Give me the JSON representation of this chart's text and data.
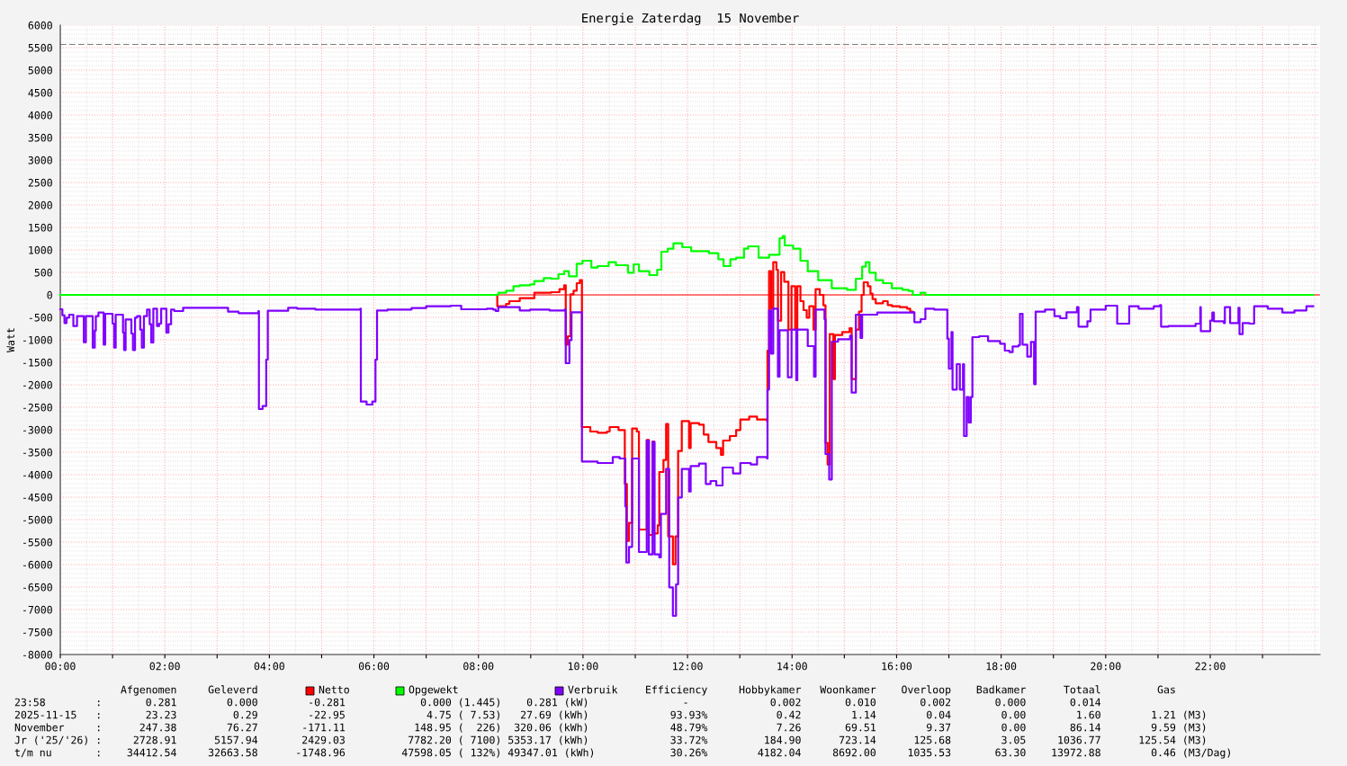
{
  "chart_data": {
    "type": "step",
    "title": "Energie Zaterdag  15 November",
    "ylabel": "Watt",
    "xlim": [
      0,
      24.1
    ],
    "ylim": [
      -8000,
      6000
    ],
    "xticks": [
      {
        "value": 0,
        "label": "00:00"
      },
      {
        "value": 1,
        "label": null
      },
      {
        "value": 2,
        "label": "02:00"
      },
      {
        "value": 3,
        "label": null
      },
      {
        "value": 4,
        "label": "04:00"
      },
      {
        "value": 5,
        "label": null
      },
      {
        "value": 6,
        "label": "06:00"
      },
      {
        "value": 7,
        "label": null
      },
      {
        "value": 8,
        "label": "08:00"
      },
      {
        "value": 9,
        "label": null
      },
      {
        "value": 10,
        "label": "10:00"
      },
      {
        "value": 11,
        "label": null
      },
      {
        "value": 12,
        "label": "12:00"
      },
      {
        "value": 13,
        "label": null
      },
      {
        "value": 14,
        "label": "14:00"
      },
      {
        "value": 15,
        "label": null
      },
      {
        "value": 16,
        "label": "16:00"
      },
      {
        "value": 17,
        "label": null
      },
      {
        "value": 18,
        "label": "18:00"
      },
      {
        "value": 19,
        "label": null
      },
      {
        "value": 20,
        "label": "20:00"
      },
      {
        "value": 21,
        "label": null
      },
      {
        "value": 22,
        "label": "22:00"
      },
      {
        "value": 23,
        "label": null
      }
    ],
    "yticks": [
      -8000,
      -7500,
      -7000,
      -6500,
      -6000,
      -5500,
      -5000,
      -4500,
      -4000,
      -3500,
      -3000,
      -2500,
      -2000,
      -1500,
      -1000,
      -500,
      0,
      500,
      1000,
      1500,
      2000,
      2500,
      3000,
      3500,
      4000,
      4500,
      5000,
      5500,
      6000
    ],
    "grid": true,
    "legend": "bottom",
    "ref_lines": [
      {
        "axis": "y",
        "value": 0,
        "color": "#ff0000",
        "line_style": "solid"
      },
      {
        "axis": "y",
        "value": 5570,
        "color": "#808080",
        "line_style": "dashed"
      }
    ],
    "series": [
      {
        "name": "Netto",
        "color": "#ff0000",
        "x": [
          8.33,
          8.36,
          8.53,
          8.59,
          8.79,
          9.07,
          9.39,
          9.55,
          9.64,
          9.67,
          9.71,
          9.76,
          9.82,
          9.88,
          9.94,
          9.98,
          10.14,
          10.28,
          10.46,
          10.51,
          10.68,
          10.8,
          10.84,
          10.88,
          10.94,
          11.03,
          11.07,
          11.22,
          11.26,
          11.33,
          11.36,
          11.43,
          11.46,
          11.54,
          11.59,
          11.63,
          11.72,
          11.77,
          11.82,
          11.89,
          12.03,
          12.06,
          12.22,
          12.31,
          12.4,
          12.55,
          12.64,
          12.68,
          12.81,
          12.93,
          13.01,
          13.18,
          13.33,
          13.52,
          13.53,
          13.56,
          13.6,
          13.64,
          13.7,
          13.73,
          13.79,
          13.85,
          13.93,
          13.99,
          14.06,
          14.1,
          14.16,
          14.22,
          14.28,
          14.33,
          14.41,
          14.45,
          14.53,
          14.6,
          14.64,
          14.68,
          14.72,
          14.79,
          14.82,
          14.96,
          15.1,
          15.14,
          15.22,
          15.28,
          15.33,
          15.37,
          15.45,
          15.5,
          15.54,
          15.6,
          15.74,
          15.83,
          15.91,
          16.06,
          16.2,
          16.26,
          16.31
        ],
        "values": [
          0,
          -253,
          -200,
          -140,
          -73,
          47,
          60,
          127,
          213,
          -1107,
          -920,
          13,
          93,
          260,
          327,
          -2940,
          -3040,
          -3067,
          -3040,
          -2940,
          -3007,
          -4207,
          -5473,
          -5073,
          -2973,
          -3040,
          -5220,
          -3227,
          -5340,
          -3260,
          -5307,
          -5127,
          -3940,
          -3673,
          -2873,
          -5373,
          -5993,
          -5373,
          -3473,
          -2807,
          -3407,
          -2853,
          -2887,
          -3107,
          -3273,
          -3407,
          -3560,
          -3240,
          -3140,
          -3007,
          -2773,
          -2707,
          -2773,
          -2807,
          -1240,
          527,
          -307,
          727,
          560,
          -573,
          507,
          293,
          -773,
          193,
          -773,
          193,
          -140,
          -340,
          -507,
          -253,
          -773,
          127,
          0,
          -233,
          -3293,
          -3773,
          -873,
          -1873,
          -893,
          -827,
          -740,
          -1873,
          -773,
          -373,
          0,
          280,
          193,
          27,
          -93,
          -187,
          -140,
          -227,
          -253,
          -273,
          -307,
          -373,
          -387
        ]
      },
      {
        "name": "Opgewekt",
        "color": "#00ff00",
        "x": [
          0,
          8.33,
          8.38,
          8.53,
          8.67,
          8.79,
          8.99,
          9.07,
          9.25,
          9.39,
          9.53,
          9.64,
          9.73,
          9.88,
          9.99,
          10.16,
          10.28,
          10.49,
          10.63,
          10.86,
          10.97,
          11.07,
          11.27,
          11.42,
          11.5,
          11.62,
          11.73,
          11.9,
          12.07,
          12.41,
          12.59,
          12.69,
          12.82,
          12.93,
          13.08,
          13.16,
          13.36,
          13.56,
          13.76,
          13.82,
          13.86,
          14.02,
          14.16,
          14.3,
          14.5,
          14.76,
          15.05,
          15.22,
          15.34,
          15.41,
          15.48,
          15.6,
          15.74,
          15.91,
          16.11,
          16.23,
          16.31,
          16.46,
          16.55,
          23.97
        ],
        "values": [
          0,
          0,
          47,
          93,
          193,
          213,
          233,
          307,
          373,
          360,
          460,
          527,
          413,
          693,
          760,
          607,
          640,
          727,
          660,
          493,
          680,
          527,
          440,
          560,
          960,
          1027,
          1147,
          1060,
          973,
          927,
          793,
          640,
          793,
          827,
          1027,
          1080,
          827,
          893,
          1260,
          1307,
          1100,
          1027,
          760,
          527,
          327,
          147,
          113,
          360,
          627,
          727,
          493,
          327,
          260,
          147,
          113,
          87,
          0,
          47,
          0,
          0
        ]
      },
      {
        "name": "Verbruik",
        "color": "#7f00ff",
        "x": [
          0,
          0.04,
          0.08,
          0.12,
          0.17,
          0.25,
          0.32,
          0.45,
          0.49,
          0.62,
          0.66,
          0.68,
          0.73,
          0.83,
          0.86,
          1.0,
          1.03,
          1.06,
          1.2,
          1.22,
          1.25,
          1.36,
          1.39,
          1.43,
          1.47,
          1.53,
          1.56,
          1.6,
          1.66,
          1.71,
          1.74,
          1.78,
          1.85,
          1.89,
          1.93,
          2.03,
          2.07,
          2.12,
          2.18,
          2.35,
          3.21,
          3.41,
          3.79,
          3.8,
          3.87,
          3.94,
          3.97,
          4.36,
          4.53,
          4.88,
          5.74,
          5.75,
          5.86,
          5.97,
          6.03,
          6.06,
          6.26,
          6.72,
          7.0,
          7.47,
          7.67,
          8.16,
          8.28,
          8.33,
          8.38,
          8.79,
          8.99,
          9.36,
          9.65,
          9.67,
          9.74,
          9.78,
          9.98,
          10.28,
          10.57,
          10.7,
          10.81,
          10.83,
          10.88,
          10.94,
          11.07,
          11.22,
          11.26,
          11.33,
          11.37,
          11.46,
          11.49,
          11.59,
          11.65,
          11.72,
          11.78,
          11.82,
          11.89,
          12.03,
          12.06,
          12.22,
          12.35,
          12.44,
          12.55,
          12.67,
          12.87,
          13.01,
          13.21,
          13.33,
          13.52,
          13.53,
          13.56,
          13.6,
          13.64,
          13.73,
          13.76,
          13.92,
          13.99,
          14.08,
          14.1,
          14.3,
          14.42,
          14.45,
          14.62,
          14.64,
          14.71,
          14.76,
          14.88,
          15.11,
          15.14,
          15.22,
          15.31,
          15.34,
          15.63,
          16.31,
          16.34,
          16.46,
          16.55,
          16.72,
          16.97,
          17.0,
          17.05,
          17.07,
          17.15,
          17.21,
          17.27,
          17.29,
          17.34,
          17.38,
          17.42,
          17.45,
          17.58,
          17.75,
          17.98,
          18.07,
          18.16,
          18.22,
          18.33,
          18.36,
          18.41,
          18.5,
          18.57,
          18.63,
          18.66,
          18.84,
          19.02,
          19.13,
          19.25,
          19.45,
          19.48,
          19.65,
          19.71,
          20.0,
          20.22,
          20.45,
          20.63,
          20.92,
          21.04,
          21.06,
          21.2,
          21.55,
          21.72,
          21.81,
          21.82,
          22.0,
          22.04,
          22.07,
          22.26,
          22.28,
          22.38,
          22.54,
          22.56,
          22.62,
          22.75,
          22.84,
          23.1,
          23.38,
          23.61,
          23.84,
          23.97
        ],
        "values": [
          -320,
          -453,
          -627,
          -507,
          -440,
          -693,
          -473,
          -1053,
          -473,
          -1173,
          -793,
          -473,
          -393,
          -1107,
          -420,
          -640,
          -1173,
          -440,
          -840,
          -1227,
          -547,
          -860,
          -1227,
          -507,
          -473,
          -773,
          -1173,
          -473,
          -327,
          -653,
          -1060,
          -307,
          -693,
          -640,
          -307,
          -840,
          -653,
          -327,
          -360,
          -287,
          -373,
          -407,
          -360,
          -2540,
          -2473,
          -1440,
          -353,
          -287,
          -307,
          -327,
          -307,
          -2373,
          -2440,
          -2373,
          -1440,
          -347,
          -327,
          -293,
          -253,
          -240,
          -320,
          -307,
          -327,
          -360,
          -273,
          -347,
          -327,
          -347,
          -327,
          -1520,
          -1007,
          -387,
          -3707,
          -3740,
          -3607,
          -3640,
          -4707,
          -5953,
          -5607,
          -3640,
          -5720,
          -3240,
          -5773,
          -3273,
          -5773,
          -5840,
          -4873,
          -3873,
          -6507,
          -7140,
          -6440,
          -4507,
          -3873,
          -4373,
          -3807,
          -3753,
          -4207,
          -4140,
          -4240,
          -3840,
          -3973,
          -3740,
          -3773,
          -3607,
          -3640,
          -2107,
          -347,
          -1307,
          -307,
          -1820,
          -787,
          -1833,
          -773,
          -1900,
          -773,
          -1140,
          -1820,
          -327,
          -540,
          -3540,
          -4107,
          -1040,
          -987,
          -907,
          -2173,
          -440,
          -960,
          -440,
          -393,
          -387,
          -607,
          -540,
          -307,
          -327,
          -973,
          -1640,
          -827,
          -2107,
          -1540,
          -2107,
          -1540,
          -3140,
          -2273,
          -2840,
          -2273,
          -940,
          -920,
          -1027,
          -1087,
          -1240,
          -1273,
          -1147,
          -1120,
          -420,
          -1107,
          -1373,
          -1047,
          -1987,
          -373,
          -327,
          -473,
          -520,
          -387,
          -273,
          -707,
          -587,
          -327,
          -240,
          -640,
          -253,
          -307,
          -253,
          -227,
          -707,
          -693,
          -693,
          -640,
          -273,
          -807,
          -573,
          -393,
          -587,
          -627,
          -273,
          -627,
          -287,
          -873,
          -627,
          -640,
          -253,
          -307,
          -393,
          -347,
          -253,
          -253
        ]
      }
    ],
    "annotations": [
      "                 Afgenomen     Geleverd                                                              Efficiency     Hobbykamer   Woonkamer    Overloop    Badkamer      Totaal         Gas",
      "23:58        :       0.281        0.000        -0.281            0.000 (1.445)    0.281 (kW)               -             0.002       0.010       0.002       0.000       0.014",
      "2025-11-15   :       23.23         0.29        -22.95             4.75 ( 7.53)   27.69 (kWh)             93.93%           0.42        1.14        0.04        0.00        1.60        1.21 (M3)",
      "November     :      247.38        76.27       -171.11           148.95 (  226)  320.06 (kWh)             48.79%           7.26       69.51        9.37        0.00       86.14        9.59 (M3)",
      "Jr ('25/'26) :     2728.91      5157.94       2429.03          7782.20 ( 7100) 5353.17 (kWh)             33.72%         184.90      723.14      125.68        3.05     1036.77      125.54 (M3)",
      "t/m nu       :    34412.54     32663.58      -1748.96         47598.05 ( 132%) 49347.01 (kWh)            30.26%        4182.04     8692.00     1035.53       63.30    13972.88        0.46 (M3/Dag)"
    ]
  }
}
